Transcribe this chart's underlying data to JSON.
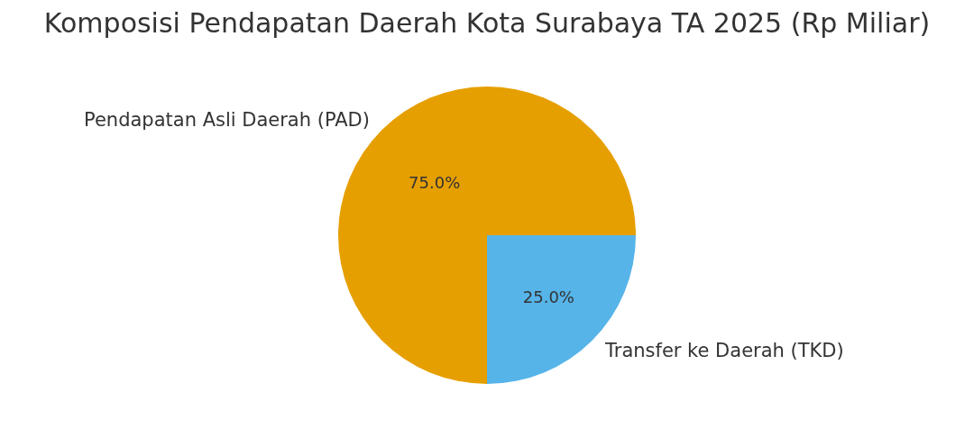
{
  "chart_data": {
    "type": "pie",
    "title": "Komposisi Pendapatan Daerah Kota Surabaya TA 2025 (Rp Miliar)",
    "categories": [
      "Pendapatan Asli Daerah (PAD)",
      "Transfer ke Daerah (TKD)"
    ],
    "values": [
      75,
      25
    ],
    "colors": [
      "#e69f00",
      "#56b4e9"
    ],
    "value_labels": [
      "75.0%",
      "25.0%"
    ]
  }
}
